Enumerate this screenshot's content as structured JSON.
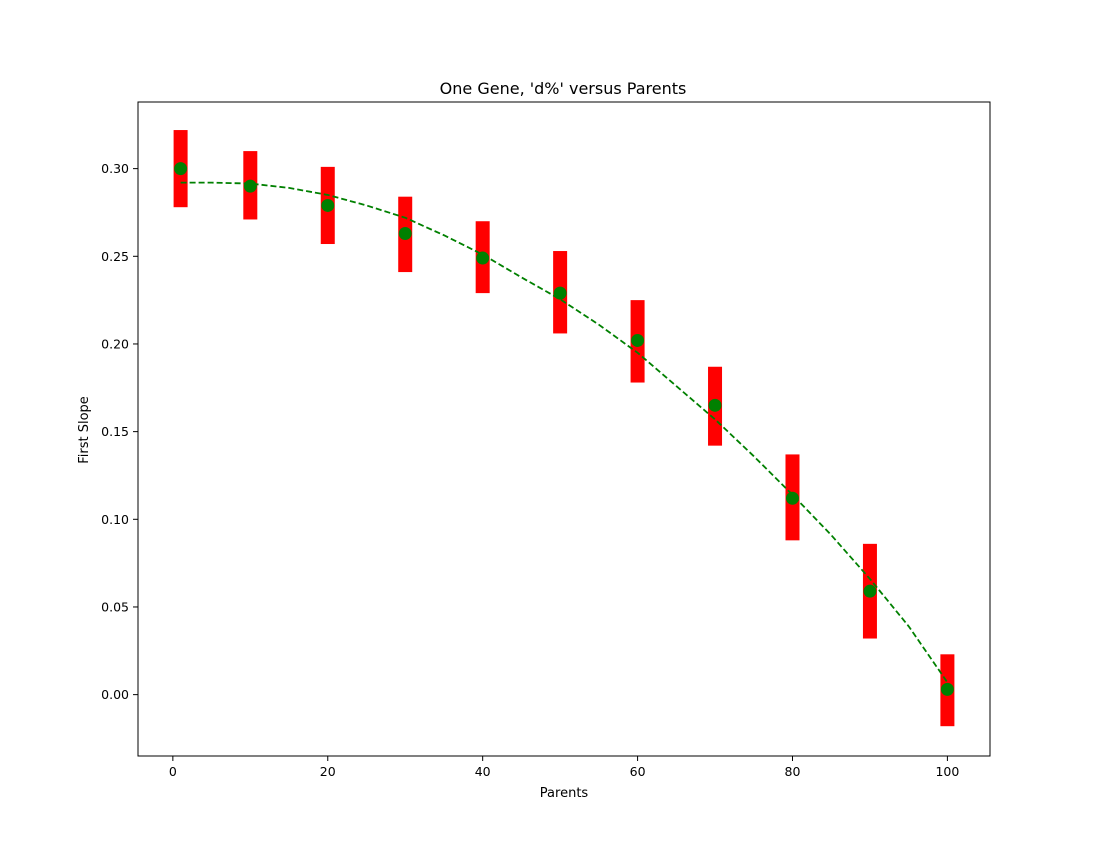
{
  "chart_data": {
    "type": "scatter",
    "title": "One Gene, 'd%' versus Parents",
    "xlabel": "Parents",
    "ylabel": "First Slope",
    "xlim": [
      -4.5,
      105.5
    ],
    "ylim": [
      -0.035,
      0.338
    ],
    "xticks": [
      0,
      20,
      40,
      60,
      80,
      100
    ],
    "xtick_labels": [
      "0",
      "20",
      "40",
      "60",
      "80",
      "100"
    ],
    "yticks": [
      0.0,
      0.05,
      0.1,
      0.15,
      0.2,
      0.25,
      0.3
    ],
    "ytick_labels": [
      "0.00",
      "0.05",
      "0.10",
      "0.15",
      "0.20",
      "0.25",
      "0.30"
    ],
    "grid": false,
    "series": [
      {
        "kind": "points_with_error_bars",
        "color": "#008000",
        "error_color": "#ff0000",
        "x": [
          1,
          10,
          20,
          30,
          40,
          50,
          60,
          70,
          80,
          90,
          100
        ],
        "y": [
          0.3,
          0.29,
          0.279,
          0.263,
          0.249,
          0.229,
          0.202,
          0.165,
          0.112,
          0.059,
          0.003
        ],
        "err_low": [
          0.278,
          0.271,
          0.257,
          0.241,
          0.229,
          0.206,
          0.178,
          0.142,
          0.088,
          0.032,
          -0.018
        ],
        "err_high": [
          0.322,
          0.31,
          0.301,
          0.284,
          0.27,
          0.253,
          0.225,
          0.187,
          0.137,
          0.086,
          0.023
        ]
      },
      {
        "kind": "fit_curve",
        "color": "#008000",
        "style": "dashed",
        "x": [
          1,
          5,
          10,
          15,
          20,
          25,
          30,
          35,
          40,
          45,
          50,
          55,
          60,
          65,
          70,
          75,
          80,
          85,
          90,
          95,
          100
        ],
        "y": [
          0.292,
          0.292,
          0.2915,
          0.289,
          0.285,
          0.279,
          0.272,
          0.262,
          0.251,
          0.238,
          0.2255,
          0.211,
          0.195,
          0.176,
          0.157,
          0.136,
          0.114,
          0.091,
          0.066,
          0.039,
          0.007
        ]
      }
    ]
  }
}
